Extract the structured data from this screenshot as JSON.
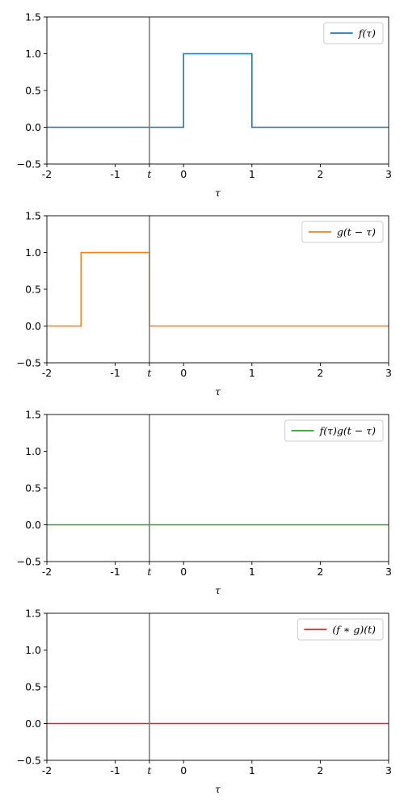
{
  "chart_data": [
    {
      "type": "line",
      "xlabel": "τ",
      "xlim": [
        -2,
        3
      ],
      "ylim": [
        -0.5,
        1.5
      ],
      "x_ticks": [
        -2,
        -1,
        0,
        1,
        2,
        3
      ],
      "x_tick_labels": [
        "-2",
        "-1",
        "0",
        "1",
        "2",
        "3"
      ],
      "y_ticks": [
        -0.5,
        0.0,
        0.5,
        1.0,
        1.5
      ],
      "y_tick_labels": [
        "−0.5",
        "0.0",
        "0.5",
        "1.0",
        "1.5"
      ],
      "marker": {
        "x": -0.5,
        "label": "t",
        "color": "#808080"
      },
      "legend_position": "top-right",
      "grid": false,
      "series": [
        {
          "name": "f(τ)",
          "color": "#1f77b4",
          "x": [
            -2,
            0,
            0,
            1,
            1,
            3
          ],
          "y": [
            0,
            0,
            1,
            1,
            0,
            0
          ]
        }
      ]
    },
    {
      "type": "line",
      "xlabel": "τ",
      "xlim": [
        -2,
        3
      ],
      "ylim": [
        -0.5,
        1.5
      ],
      "x_ticks": [
        -2,
        -1,
        0,
        1,
        2,
        3
      ],
      "x_tick_labels": [
        "-2",
        "-1",
        "0",
        "1",
        "2",
        "3"
      ],
      "y_ticks": [
        -0.5,
        0.0,
        0.5,
        1.0,
        1.5
      ],
      "y_tick_labels": [
        "−0.5",
        "0.0",
        "0.5",
        "1.0",
        "1.5"
      ],
      "marker": {
        "x": -0.5,
        "label": "t",
        "color": "#808080"
      },
      "legend_position": "top-right",
      "grid": false,
      "series": [
        {
          "name": "g(t − τ)",
          "color": "#ff7f0e",
          "x": [
            -2,
            -1.5,
            -1.5,
            -0.5,
            -0.5,
            3
          ],
          "y": [
            0,
            0,
            1,
            1,
            0,
            0
          ]
        }
      ]
    },
    {
      "type": "line",
      "xlabel": "τ",
      "xlim": [
        -2,
        3
      ],
      "ylim": [
        -0.5,
        1.5
      ],
      "x_ticks": [
        -2,
        -1,
        0,
        1,
        2,
        3
      ],
      "x_tick_labels": [
        "-2",
        "-1",
        "0",
        "1",
        "2",
        "3"
      ],
      "y_ticks": [
        -0.5,
        0.0,
        0.5,
        1.0,
        1.5
      ],
      "y_tick_labels": [
        "−0.5",
        "0.0",
        "0.5",
        "1.0",
        "1.5"
      ],
      "marker": {
        "x": -0.5,
        "label": "t",
        "color": "#808080"
      },
      "legend_position": "top-right",
      "grid": false,
      "series": [
        {
          "name": "f(τ)g(t − τ)",
          "color": "#2ca02c",
          "x": [
            -2,
            3
          ],
          "y": [
            0,
            0
          ]
        }
      ]
    },
    {
      "type": "line",
      "xlabel": "τ",
      "xlim": [
        -2,
        3
      ],
      "ylim": [
        -0.5,
        1.5
      ],
      "x_ticks": [
        -2,
        -1,
        0,
        1,
        2,
        3
      ],
      "x_tick_labels": [
        "-2",
        "-1",
        "0",
        "1",
        "2",
        "3"
      ],
      "y_ticks": [
        -0.5,
        0.0,
        0.5,
        1.0,
        1.5
      ],
      "y_tick_labels": [
        "−0.5",
        "0.0",
        "0.5",
        "1.0",
        "1.5"
      ],
      "marker": {
        "x": -0.5,
        "label": "t",
        "color": "#808080"
      },
      "legend_position": "top-right",
      "grid": false,
      "series": [
        {
          "name": "(f ∗ g)(t)",
          "color": "#d62728",
          "x": [
            -2,
            3
          ],
          "y": [
            0,
            0
          ]
        }
      ]
    }
  ]
}
